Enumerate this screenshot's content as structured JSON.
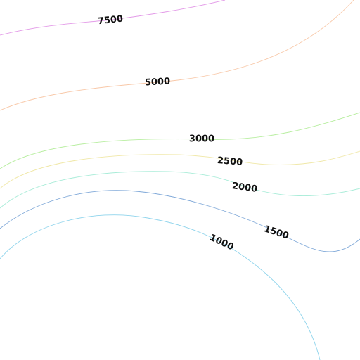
{
  "contour_map": {
    "contours": [
      {
        "level": 7500,
        "label": "7500",
        "color": "#e39be8"
      },
      {
        "level": 5000,
        "label": "5000",
        "color": "#f8c8a8"
      },
      {
        "level": 3000,
        "label": "3000",
        "color": "#b8eea0"
      },
      {
        "level": 2500,
        "label": "2500",
        "color": "#f0e8a8"
      },
      {
        "level": 2000,
        "label": "2000",
        "color": "#a8ecd8"
      },
      {
        "level": 1500,
        "label": "1500",
        "color": "#7fa8d8"
      },
      {
        "level": 1000,
        "label": "1000",
        "color": "#8fd4ec"
      }
    ]
  }
}
